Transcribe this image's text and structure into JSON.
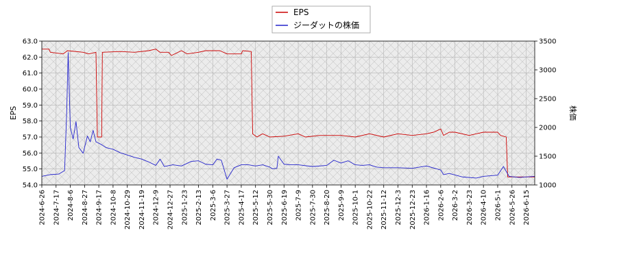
{
  "chart_data": {
    "type": "line",
    "legend": {
      "placement": "top-center",
      "entries": [
        "EPS",
        "ジーダットの株価"
      ]
    },
    "grid": true,
    "x_tick_labels": [
      "2024-6-26",
      "2024-7-17",
      "2024-8-6",
      "2024-8-27",
      "2024-9-17",
      "2024-10-8",
      "2024-10-29",
      "2024-11-19",
      "2024-12-9",
      "2024-12-27",
      "2025-1-23",
      "2025-2-13",
      "2025-3-6",
      "2025-3-27",
      "2025-4-17",
      "2025-5-12",
      "2025-5-30",
      "2025-6-19",
      "2025-7-9",
      "2025-7-30",
      "2025-8-20",
      "2025-9-9",
      "2025-10-1",
      "2025-10-22",
      "2025-11-12",
      "2025-12-3",
      "2025-12-23",
      "2026-1-16",
      "2026-2-6",
      "2026-3-2",
      "2026-3-23",
      "2026-4-10",
      "2026-5-1",
      "2026-5-26",
      "2026-6-15"
    ],
    "xlim_index": [
      0,
      34.6
    ],
    "left_axis": {
      "label": "EPS",
      "ylim": [
        54.0,
        63.0
      ],
      "ticks": [
        "54.0",
        "55.0",
        "56.0",
        "57.0",
        "58.0",
        "59.0",
        "60.0",
        "61.0",
        "62.0",
        "63.0"
      ]
    },
    "right_axis": {
      "label": "株価",
      "ylim": [
        1000,
        3500
      ],
      "ticks": [
        "1000",
        "1500",
        "2000",
        "2500",
        "3000",
        "3500"
      ]
    },
    "series": [
      {
        "name": "EPS",
        "axis": "left",
        "color": "#cc0000",
        "points": [
          [
            0,
            62.5
          ],
          [
            0.5,
            62.5
          ],
          [
            0.6,
            62.3
          ],
          [
            1.5,
            62.2
          ],
          [
            1.8,
            62.4
          ],
          [
            2.9,
            62.3
          ],
          [
            3.3,
            62.2
          ],
          [
            3.8,
            62.3
          ],
          [
            3.9,
            57.0
          ],
          [
            4.2,
            57.0
          ],
          [
            4.25,
            62.3
          ],
          [
            5.5,
            62.35
          ],
          [
            6.5,
            62.3
          ],
          [
            7.5,
            62.4
          ],
          [
            8.0,
            62.5
          ],
          [
            8.3,
            62.3
          ],
          [
            8.9,
            62.3
          ],
          [
            9.1,
            62.1
          ],
          [
            9.8,
            62.4
          ],
          [
            10.2,
            62.2
          ],
          [
            11.0,
            62.3
          ],
          [
            11.5,
            62.4
          ],
          [
            12.5,
            62.4
          ],
          [
            13.0,
            62.2
          ],
          [
            14.0,
            62.2
          ],
          [
            14.1,
            62.4
          ],
          [
            14.7,
            62.35
          ],
          [
            14.8,
            57.2
          ],
          [
            15.1,
            57.0
          ],
          [
            15.5,
            57.2
          ],
          [
            16.0,
            57.0
          ],
          [
            17.0,
            57.05
          ],
          [
            18.0,
            57.2
          ],
          [
            18.5,
            57.0
          ],
          [
            19.5,
            57.1
          ],
          [
            21.0,
            57.1
          ],
          [
            22.0,
            57.0
          ],
          [
            23.0,
            57.2
          ],
          [
            24.0,
            57.0
          ],
          [
            25.0,
            57.2
          ],
          [
            26.0,
            57.1
          ],
          [
            27.0,
            57.2
          ],
          [
            27.5,
            57.3
          ],
          [
            28.0,
            57.5
          ],
          [
            28.2,
            57.1
          ],
          [
            28.6,
            57.3
          ],
          [
            29.0,
            57.3
          ],
          [
            30.0,
            57.1
          ],
          [
            30.5,
            57.2
          ],
          [
            31.0,
            57.3
          ],
          [
            32.0,
            57.3
          ],
          [
            32.2,
            57.1
          ],
          [
            32.6,
            57.0
          ],
          [
            32.7,
            54.5
          ],
          [
            34.6,
            54.5
          ]
        ]
      },
      {
        "name": "ジーダットの株価",
        "axis": "right",
        "color": "#2222cc",
        "points": [
          [
            0,
            1150
          ],
          [
            0.6,
            1180
          ],
          [
            1.2,
            1190
          ],
          [
            1.6,
            1250
          ],
          [
            1.75,
            2300
          ],
          [
            1.85,
            3300
          ],
          [
            2.0,
            2000
          ],
          [
            2.2,
            1800
          ],
          [
            2.4,
            2100
          ],
          [
            2.6,
            1650
          ],
          [
            2.9,
            1550
          ],
          [
            3.2,
            1850
          ],
          [
            3.4,
            1750
          ],
          [
            3.6,
            1950
          ],
          [
            3.8,
            1750
          ],
          [
            4.2,
            1700
          ],
          [
            4.5,
            1650
          ],
          [
            5.0,
            1620
          ],
          [
            5.5,
            1560
          ],
          [
            6.0,
            1520
          ],
          [
            6.5,
            1480
          ],
          [
            7.0,
            1450
          ],
          [
            7.5,
            1400
          ],
          [
            8.0,
            1340
          ],
          [
            8.3,
            1450
          ],
          [
            8.6,
            1320
          ],
          [
            9.2,
            1350
          ],
          [
            9.8,
            1330
          ],
          [
            10.5,
            1410
          ],
          [
            11.0,
            1420
          ],
          [
            11.5,
            1360
          ],
          [
            12.0,
            1350
          ],
          [
            12.3,
            1450
          ],
          [
            12.6,
            1430
          ],
          [
            13.0,
            1100
          ],
          [
            13.5,
            1300
          ],
          [
            14.0,
            1350
          ],
          [
            14.5,
            1350
          ],
          [
            15.0,
            1330
          ],
          [
            15.5,
            1350
          ],
          [
            16.0,
            1310
          ],
          [
            16.2,
            1280
          ],
          [
            16.5,
            1290
          ],
          [
            16.6,
            1500
          ],
          [
            17.0,
            1360
          ],
          [
            17.5,
            1350
          ],
          [
            18.0,
            1350
          ],
          [
            19.0,
            1320
          ],
          [
            20.0,
            1340
          ],
          [
            20.5,
            1430
          ],
          [
            21.0,
            1380
          ],
          [
            21.5,
            1420
          ],
          [
            22.0,
            1350
          ],
          [
            22.5,
            1340
          ],
          [
            23.0,
            1350
          ],
          [
            23.5,
            1310
          ],
          [
            24.0,
            1300
          ],
          [
            25.0,
            1300
          ],
          [
            26.0,
            1290
          ],
          [
            27.0,
            1330
          ],
          [
            28.0,
            1260
          ],
          [
            28.2,
            1180
          ],
          [
            28.6,
            1200
          ],
          [
            29.5,
            1140
          ],
          [
            30.5,
            1120
          ],
          [
            31.0,
            1150
          ],
          [
            32.0,
            1170
          ],
          [
            32.4,
            1320
          ],
          [
            32.8,
            1150
          ],
          [
            33.5,
            1130
          ],
          [
            34.6,
            1150
          ]
        ]
      }
    ]
  }
}
